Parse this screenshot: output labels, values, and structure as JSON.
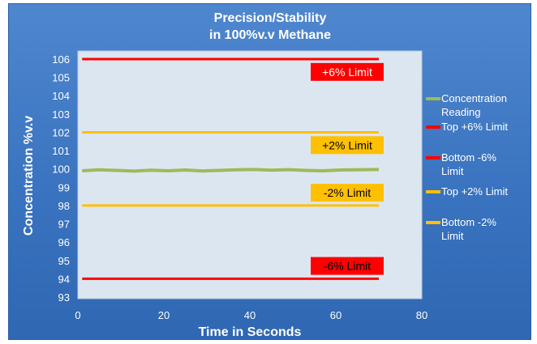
{
  "chart_data": {
    "type": "line",
    "title_line1": "Precision/Stability",
    "title_line2": "in 100%v.v Methane",
    "xlabel": "Time in Seconds",
    "ylabel": "Concentration %v.v",
    "xlim": [
      0,
      80
    ],
    "ylim": [
      93,
      106
    ],
    "x_ticks": [
      "0",
      "20",
      "40",
      "60",
      "80"
    ],
    "y_ticks": [
      "93",
      "94",
      "95",
      "96",
      "97",
      "98",
      "99",
      "100",
      "101",
      "102",
      "103",
      "104",
      "105",
      "106"
    ],
    "grid": false,
    "legend_position": "right",
    "series": [
      {
        "name": "Concentration Reading",
        "color": "#9bbb59",
        "x": [
          1,
          5,
          9,
          13,
          17,
          21,
          25,
          29,
          33,
          37,
          41,
          45,
          49,
          53,
          57,
          61,
          65,
          70
        ],
        "values": [
          99.9,
          99.95,
          99.92,
          99.88,
          99.93,
          99.9,
          99.94,
          99.89,
          99.92,
          99.95,
          99.97,
          99.93,
          99.96,
          99.92,
          99.9,
          99.94,
          99.95,
          99.97
        ]
      },
      {
        "name": "Top +6% Limit",
        "color": "#ff0000",
        "x": [
          1,
          70
        ],
        "values": [
          106,
          106
        ]
      },
      {
        "name": "Bottom -6% Limit",
        "color": "#ff0000",
        "x": [
          1,
          70
        ],
        "values": [
          94,
          94
        ]
      },
      {
        "name": "Top +2% Limit",
        "color": "#ffc000",
        "x": [
          1,
          70
        ],
        "values": [
          102,
          102
        ]
      },
      {
        "name": "Bottom -2% Limit",
        "color": "#ffc000",
        "x": [
          1,
          70
        ],
        "values": [
          98,
          98
        ]
      }
    ],
    "annotations": [
      {
        "text": "+6% Limit",
        "y": 105.3,
        "bg": "#ff0000",
        "fg": "#ffffff"
      },
      {
        "text": "+2% Limit",
        "y": 101.3,
        "bg": "#ffc000",
        "fg": "#000000"
      },
      {
        "text": "-2% Limit",
        "y": 98.7,
        "bg": "#ffc000",
        "fg": "#000000"
      },
      {
        "text": "-6% Limit",
        "y": 94.7,
        "bg": "#ff0000",
        "fg": "#000000"
      }
    ]
  }
}
